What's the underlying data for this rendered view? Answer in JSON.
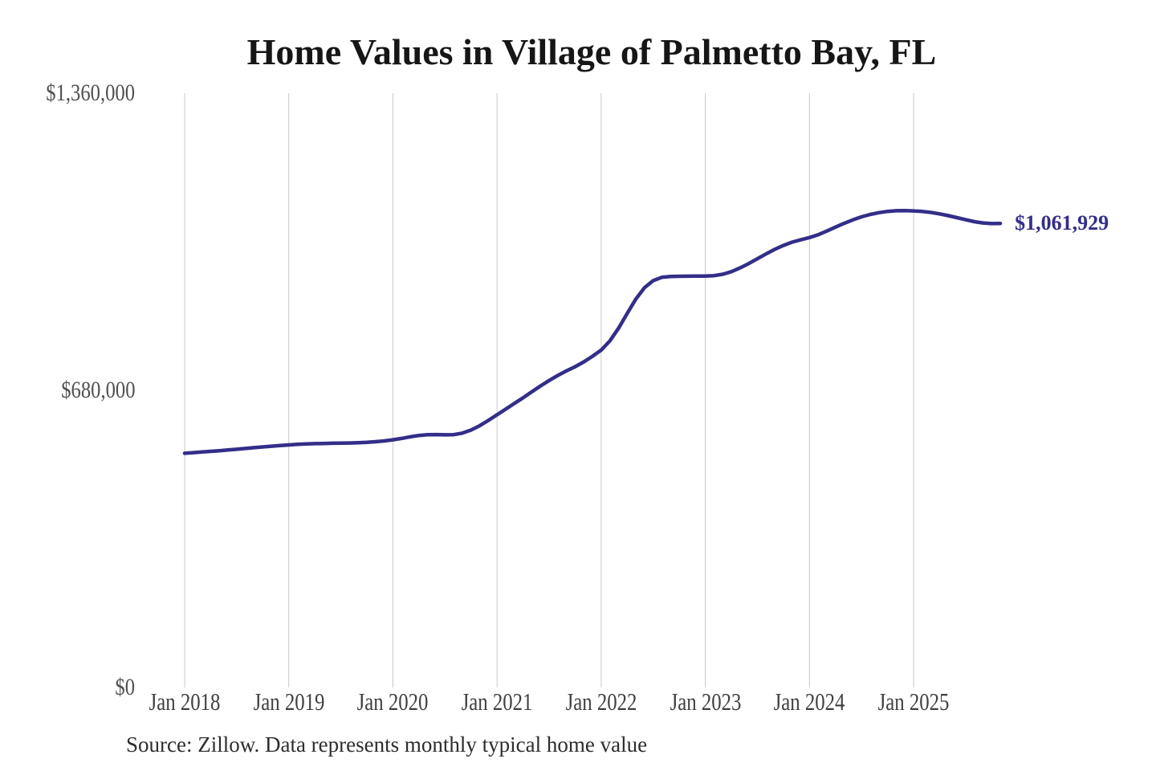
{
  "chart_data": {
    "type": "line",
    "title": "Home Values in Village of Palmetto Bay, FL",
    "source_note": "Source: Zillow. Data represents monthly typical home value",
    "xlabel": "",
    "ylabel": "",
    "ylim": [
      0,
      1360000
    ],
    "grid": "vertical-only",
    "legend": "none",
    "end_label": "$1,061,929",
    "end_value": 1061929,
    "y_ticks": [
      {
        "label": "$0",
        "value": 0
      },
      {
        "label": "$680,000",
        "value": 680000
      },
      {
        "label": "$1,360,000",
        "value": 1360000
      }
    ],
    "x_ticks": [
      {
        "label": "Jan 2018",
        "month_index": 0
      },
      {
        "label": "Jan 2019",
        "month_index": 12
      },
      {
        "label": "Jan 2020",
        "month_index": 24
      },
      {
        "label": "Jan 2021",
        "month_index": 36
      },
      {
        "label": "Jan 2022",
        "month_index": 48
      },
      {
        "label": "Jan 2023",
        "month_index": 60
      },
      {
        "label": "Jan 2024",
        "month_index": 72
      },
      {
        "label": "Jan 2025",
        "month_index": 84
      }
    ],
    "series": [
      {
        "name": "Monthly typical home value",
        "color": "#332e88",
        "x": [
          "2018-01",
          "2018-02",
          "2018-03",
          "2018-04",
          "2018-05",
          "2018-06",
          "2018-07",
          "2018-08",
          "2018-09",
          "2018-10",
          "2018-11",
          "2018-12",
          "2019-01",
          "2019-02",
          "2019-03",
          "2019-04",
          "2019-05",
          "2019-06",
          "2019-07",
          "2019-08",
          "2019-09",
          "2019-10",
          "2019-11",
          "2019-12",
          "2020-01",
          "2020-02",
          "2020-03",
          "2020-04",
          "2020-05",
          "2020-06",
          "2020-07",
          "2020-08",
          "2020-09",
          "2020-10",
          "2020-11",
          "2020-12",
          "2021-01",
          "2021-02",
          "2021-03",
          "2021-04",
          "2021-05",
          "2021-06",
          "2021-07",
          "2021-08",
          "2021-09",
          "2021-10",
          "2021-11",
          "2021-12",
          "2022-01",
          "2022-02",
          "2022-03",
          "2022-04",
          "2022-05",
          "2022-06",
          "2022-07",
          "2022-08",
          "2022-09",
          "2022-10",
          "2022-11",
          "2022-12",
          "2023-01",
          "2023-02",
          "2023-03",
          "2023-04",
          "2023-05",
          "2023-06",
          "2023-07",
          "2023-08",
          "2023-09",
          "2023-10",
          "2023-11",
          "2023-12",
          "2024-01",
          "2024-02",
          "2024-03",
          "2024-04",
          "2024-05",
          "2024-06",
          "2024-07",
          "2024-08",
          "2024-09",
          "2024-10",
          "2024-11",
          "2024-12",
          "2025-01",
          "2025-02",
          "2025-03",
          "2025-04",
          "2025-05",
          "2025-06",
          "2025-07",
          "2025-08",
          "2025-09",
          "2025-10",
          "2025-11"
        ],
        "values": [
          536000,
          537400,
          538800,
          540300,
          541800,
          543400,
          545100,
          546900,
          548700,
          550400,
          552000,
          553600,
          555100,
          556300,
          557200,
          557900,
          558400,
          558800,
          559100,
          559500,
          560100,
          561000,
          562400,
          564300,
          566800,
          570000,
          573600,
          576800,
          578600,
          578800,
          578200,
          578600,
          582000,
          589000,
          599000,
          611000,
          624000,
          637000,
          650000,
          663000,
          676500,
          690000,
          702500,
          714000,
          724500,
          734000,
          745000,
          758000,
          772000,
          793000,
          822000,
          856000,
          889000,
          915000,
          931000,
          938500,
          940500,
          941000,
          941200,
          941300,
          941500,
          942500,
          945500,
          951500,
          960000,
          970000,
          981000,
          992000,
          1002500,
          1011500,
          1019000,
          1024500,
          1029500,
          1036000,
          1044500,
          1053500,
          1062000,
          1070000,
          1077000,
          1082500,
          1086500,
          1089500,
          1091000,
          1091200,
          1090500,
          1089200,
          1087000,
          1083800,
          1079800,
          1075200,
          1070400,
          1066000,
          1063000,
          1061500,
          1061929
        ]
      }
    ],
    "colors": {
      "line": "#332e88",
      "gridline": "#c9c9c9",
      "title": "#161616",
      "y_tick_label": "#4f4f4f",
      "x_tick_label": "#3f3f3f",
      "source": "#2d2d2d",
      "end_label": "#332e88",
      "background": "#ffffff"
    }
  }
}
